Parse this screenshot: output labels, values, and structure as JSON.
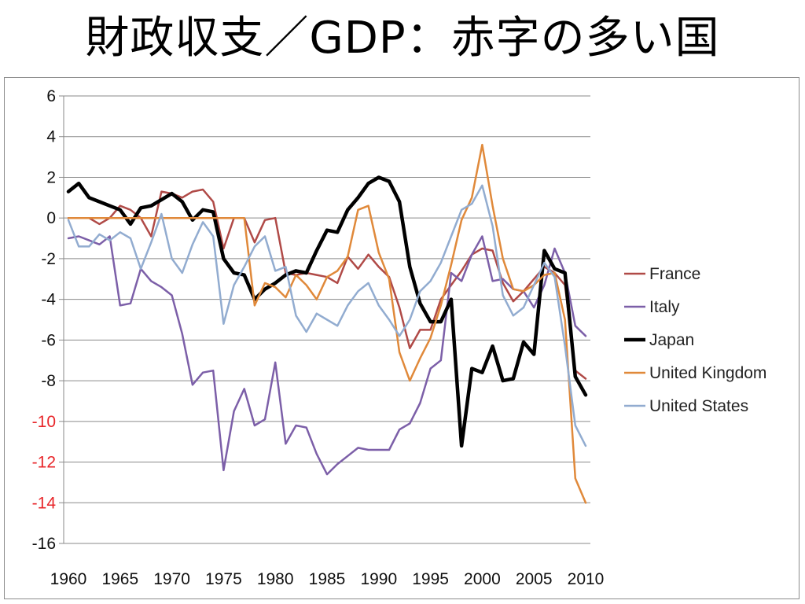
{
  "title": "財政収支／GDP：赤字の多い国",
  "chart_data": {
    "type": "line",
    "title": "",
    "xlabel": "",
    "ylabel": "",
    "ylim": [
      -16,
      6
    ],
    "xlim": [
      1960,
      2010
    ],
    "y_ticks": [
      6,
      4,
      2,
      0,
      -2,
      -4,
      -6,
      -8,
      -10,
      -12,
      -14,
      -16
    ],
    "x_ticks": [
      1960,
      1965,
      1970,
      1975,
      1980,
      1985,
      1990,
      1995,
      2000,
      2005,
      2010
    ],
    "grid": "horizontal",
    "legend_position": "right",
    "emphasized_tick_values": [
      -10,
      -12,
      -14
    ],
    "emphasized_tick_color": "#e8262a",
    "series": [
      {
        "name": "France",
        "color": "#b04a47",
        "width": 2.5,
        "x": [
          1960,
          1961,
          1962,
          1963,
          1964,
          1965,
          1966,
          1967,
          1968,
          1969,
          1970,
          1971,
          1972,
          1973,
          1974,
          1975,
          1976,
          1977,
          1978,
          1979,
          1980,
          1981,
          1982,
          1983,
          1984,
          1985,
          1986,
          1987,
          1988,
          1989,
          1990,
          1991,
          1992,
          1993,
          1994,
          1995,
          1996,
          1997,
          1998,
          1999,
          2000,
          2001,
          2002,
          2003,
          2004,
          2005,
          2006,
          2007,
          2008,
          2009,
          2010
        ],
        "y": [
          0,
          0,
          0,
          -0.3,
          0,
          0.6,
          0.4,
          0,
          -0.9,
          1.3,
          1.2,
          1.0,
          1.3,
          1.4,
          0.8,
          -1.5,
          0,
          0,
          -1.2,
          -0.1,
          0,
          -2.7,
          -2.8,
          -2.7,
          -2.8,
          -2.9,
          -3.2,
          -1.9,
          -2.5,
          -1.8,
          -2.4,
          -2.9,
          -4.4,
          -6.4,
          -5.5,
          -5.5,
          -4.0,
          -3.3,
          -2.6,
          -1.8,
          -1.5,
          -1.6,
          -3.2,
          -4.1,
          -3.6,
          -3.0,
          -2.4,
          -2.7,
          -3.3,
          -7.5,
          -7.9
        ]
      },
      {
        "name": "Italy",
        "color": "#7c5fa8",
        "width": 2.5,
        "x": [
          1960,
          1961,
          1962,
          1963,
          1964,
          1965,
          1966,
          1967,
          1968,
          1969,
          1970,
          1971,
          1972,
          1973,
          1974,
          1975,
          1976,
          1977,
          1978,
          1979,
          1980,
          1981,
          1982,
          1983,
          1984,
          1985,
          1986,
          1987,
          1988,
          1989,
          1990,
          1991,
          1992,
          1993,
          1994,
          1995,
          1996,
          1997,
          1998,
          1999,
          2000,
          2001,
          2002,
          2003,
          2004,
          2005,
          2006,
          2007,
          2008,
          2009,
          2010
        ],
        "y": [
          -1.0,
          -0.9,
          -1.1,
          -1.3,
          -0.9,
          -4.3,
          -4.2,
          -2.5,
          -3.1,
          -3.4,
          -3.8,
          -5.7,
          -8.2,
          -7.6,
          -7.5,
          -12.4,
          -9.5,
          -8.4,
          -10.2,
          -9.9,
          -7.1,
          -11.1,
          -10.2,
          -10.3,
          -11.6,
          -12.6,
          -12.1,
          -11.7,
          -11.3,
          -11.4,
          -11.4,
          -11.4,
          -10.4,
          -10.1,
          -9.1,
          -7.4,
          -7.0,
          -2.7,
          -3.1,
          -1.8,
          -0.9,
          -3.1,
          -3.0,
          -3.5,
          -3.6,
          -4.4,
          -3.3,
          -1.5,
          -2.7,
          -5.3,
          -5.8
        ]
      },
      {
        "name": "Japan",
        "color": "#000000",
        "width": 4.5,
        "x": [
          1960,
          1961,
          1962,
          1963,
          1964,
          1965,
          1966,
          1967,
          1968,
          1969,
          1970,
          1971,
          1972,
          1973,
          1974,
          1975,
          1976,
          1977,
          1978,
          1979,
          1980,
          1981,
          1982,
          1983,
          1984,
          1985,
          1986,
          1987,
          1988,
          1989,
          1990,
          1991,
          1992,
          1993,
          1994,
          1995,
          1996,
          1997,
          1998,
          1999,
          2000,
          2001,
          2002,
          2003,
          2004,
          2005,
          2006,
          2007,
          2008,
          2009,
          2010
        ],
        "y": [
          1.3,
          1.7,
          1.0,
          0.8,
          0.6,
          0.4,
          -0.3,
          0.5,
          0.6,
          0.9,
          1.2,
          0.8,
          -0.1,
          0.4,
          0.3,
          -2.0,
          -2.7,
          -2.8,
          -4.0,
          -3.5,
          -3.2,
          -2.8,
          -2.6,
          -2.7,
          -1.6,
          -0.6,
          -0.7,
          0.4,
          1.0,
          1.7,
          2.0,
          1.8,
          0.8,
          -2.4,
          -4.2,
          -5.1,
          -5.1,
          -4.0,
          -11.2,
          -7.4,
          -7.6,
          -6.3,
          -8.0,
          -7.9,
          -6.1,
          -6.7,
          -1.6,
          -2.5,
          -2.7,
          -7.8,
          -8.7
        ]
      },
      {
        "name": "United Kingdom",
        "color": "#e0893a",
        "width": 2.5,
        "x": [
          1960,
          1961,
          1962,
          1963,
          1964,
          1965,
          1966,
          1967,
          1968,
          1969,
          1970,
          1971,
          1972,
          1973,
          1974,
          1975,
          1976,
          1977,
          1978,
          1979,
          1980,
          1981,
          1982,
          1983,
          1984,
          1985,
          1986,
          1987,
          1988,
          1989,
          1990,
          1991,
          1992,
          1993,
          1994,
          1995,
          1996,
          1997,
          1998,
          1999,
          2000,
          2001,
          2002,
          2003,
          2004,
          2005,
          2006,
          2007,
          2008,
          2009,
          2010
        ],
        "y": [
          0,
          0,
          0,
          0,
          0,
          0,
          0,
          0,
          0,
          0,
          0,
          0,
          0,
          0,
          0,
          0,
          0,
          0,
          -4.3,
          -3.2,
          -3.4,
          -3.9,
          -2.8,
          -3.3,
          -4.0,
          -2.9,
          -2.6,
          -1.9,
          0.4,
          0.6,
          -1.7,
          -3.0,
          -6.6,
          -8.0,
          -6.9,
          -5.9,
          -4.3,
          -2.3,
          -0.1,
          1.0,
          3.6,
          0.6,
          -2.0,
          -3.5,
          -3.6,
          -3.3,
          -2.8,
          -2.7,
          -5.0,
          -12.8,
          -14.0
        ]
      },
      {
        "name": "United States",
        "color": "#92acd0",
        "width": 2.5,
        "x": [
          1960,
          1961,
          1962,
          1963,
          1964,
          1965,
          1966,
          1967,
          1968,
          1969,
          1970,
          1971,
          1972,
          1973,
          1974,
          1975,
          1976,
          1977,
          1978,
          1979,
          1980,
          1981,
          1982,
          1983,
          1984,
          1985,
          1986,
          1987,
          1988,
          1989,
          1990,
          1991,
          1992,
          1993,
          1994,
          1995,
          1996,
          1997,
          1998,
          1999,
          2000,
          2001,
          2002,
          2003,
          2004,
          2005,
          2006,
          2007,
          2008,
          2009,
          2010
        ],
        "y": [
          -0.1,
          -1.4,
          -1.4,
          -0.8,
          -1.1,
          -0.7,
          -1.0,
          -2.5,
          -1.2,
          0.2,
          -2.0,
          -2.7,
          -1.3,
          -0.2,
          -0.9,
          -5.2,
          -3.3,
          -2.4,
          -1.4,
          -0.9,
          -2.6,
          -2.4,
          -4.8,
          -5.6,
          -4.7,
          -5.0,
          -5.3,
          -4.3,
          -3.6,
          -3.2,
          -4.3,
          -5.0,
          -5.8,
          -5.0,
          -3.6,
          -3.1,
          -2.2,
          -0.9,
          0.4,
          0.7,
          1.6,
          -0.4,
          -3.8,
          -4.8,
          -4.4,
          -3.3,
          -2.2,
          -2.9,
          -6.3,
          -10.2,
          -11.2
        ]
      }
    ]
  }
}
